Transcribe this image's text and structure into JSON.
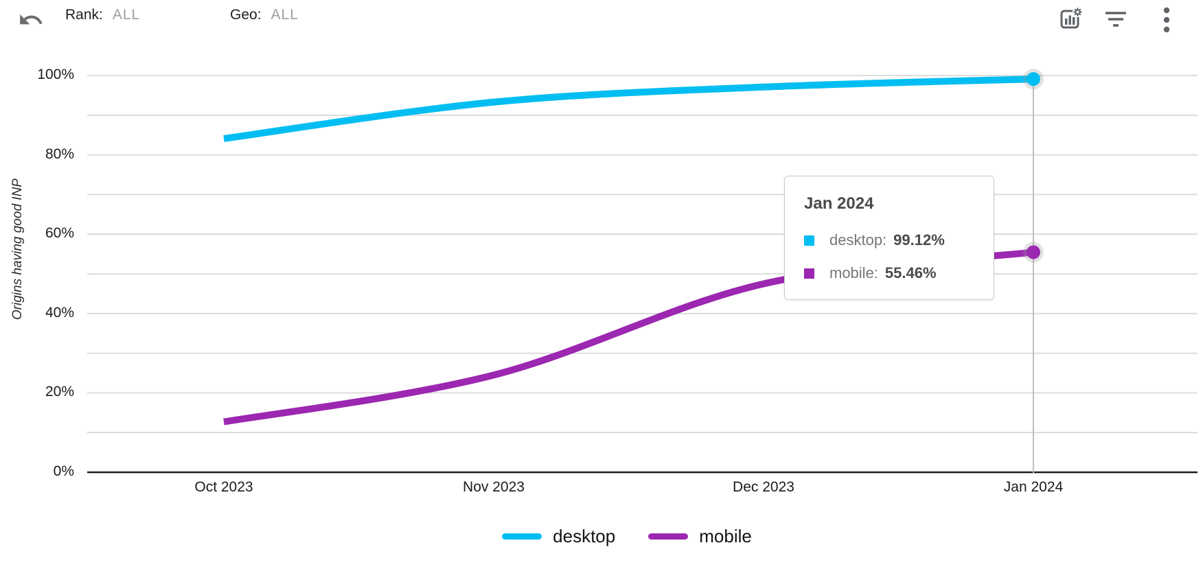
{
  "toolbar": {
    "undo_icon": "undo-arrow",
    "rank": {
      "label": "Rank:",
      "value": "ALL"
    },
    "geo": {
      "label": "Geo:",
      "value": "ALL"
    },
    "action_icons": [
      "chart-settings",
      "filter",
      "more-options"
    ],
    "icon_color": "#5f6368"
  },
  "chart_data": {
    "type": "line",
    "x": [
      "Oct 2023",
      "Nov 2023",
      "Dec 2023",
      "Jan 2024"
    ],
    "series": [
      {
        "name": "desktop",
        "color": "#00bdf2",
        "values": [
          84.1,
          93.3,
          97.1,
          99.12
        ]
      },
      {
        "name": "mobile",
        "color": "#9c27b0",
        "values": [
          12.7,
          24.5,
          47.5,
          55.46
        ]
      }
    ],
    "ylabel": "Origins having good INP",
    "ylim": [
      0,
      100
    ],
    "ytick_labels": [
      "0%",
      "20%",
      "40%",
      "60%",
      "80%",
      "100%"
    ],
    "grid_step_percent": 10,
    "grid_color": "#d9d9d9",
    "axis_color": "#1a1a1a",
    "crosshair_color": "#bdbdbd",
    "legend_position": "bottom",
    "selected_x": "Jan 2024",
    "selected_index": 3
  },
  "tooltip": {
    "title": "Jan 2024",
    "items": [
      {
        "label": "desktop:",
        "value": "99.12%",
        "color": "#00bdf2"
      },
      {
        "label": "mobile:",
        "value": "55.46%",
        "color": "#9c27b0"
      }
    ]
  }
}
